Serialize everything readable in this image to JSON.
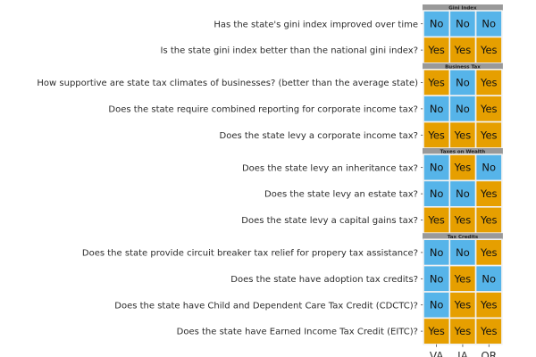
{
  "chart_data": {
    "type": "heatmap",
    "title": "",
    "columns": [
      "VA",
      "IA",
      "OR"
    ],
    "colors": {
      "Yes": "#E69F00",
      "No": "#56B4E9",
      "strip": "#999999",
      "grid": "#ebebeb"
    },
    "panels": [
      {
        "name": "Gini Index",
        "rows": [
          {
            "question": "Has the state's gini index improved over time",
            "values": [
              "No",
              "No",
              "No"
            ]
          },
          {
            "question": "Is the state gini index better than the national gini index?",
            "values": [
              "Yes",
              "Yes",
              "Yes"
            ]
          }
        ]
      },
      {
        "name": "Business Tax",
        "rows": [
          {
            "question": "How supportive are state tax climates of businesses? (better than the average state)",
            "values": [
              "Yes",
              "No",
              "Yes"
            ]
          },
          {
            "question": "Does the state require combined reporting for corporate income tax?",
            "values": [
              "No",
              "No",
              "Yes"
            ]
          },
          {
            "question": "Does the state levy a corporate income tax?",
            "values": [
              "Yes",
              "Yes",
              "Yes"
            ]
          }
        ]
      },
      {
        "name": "Taxes on Wealth",
        "rows": [
          {
            "question": "Does the state levy an inheritance tax?",
            "values": [
              "No",
              "Yes",
              "No"
            ]
          },
          {
            "question": "Does the state levy an estate tax?",
            "values": [
              "No",
              "No",
              "Yes"
            ]
          },
          {
            "question": "Does the state levy a capital gains tax?",
            "values": [
              "Yes",
              "Yes",
              "Yes"
            ]
          }
        ]
      },
      {
        "name": "Tax Credits",
        "rows": [
          {
            "question": "Does the state provide circuit breaker tax relief for propery tax assistance?",
            "values": [
              "No",
              "No",
              "Yes"
            ]
          },
          {
            "question": "Does the state have adoption tax credits?",
            "values": [
              "No",
              "Yes",
              "No"
            ]
          },
          {
            "question": "Does the state have Child and Dependent Care Tax Credit (CDCTC)?",
            "values": [
              "No",
              "Yes",
              "Yes"
            ]
          },
          {
            "question": "Does the state have Earned Income Tax Credit (EITC)?",
            "values": [
              "Yes",
              "Yes",
              "Yes"
            ]
          }
        ]
      }
    ]
  }
}
